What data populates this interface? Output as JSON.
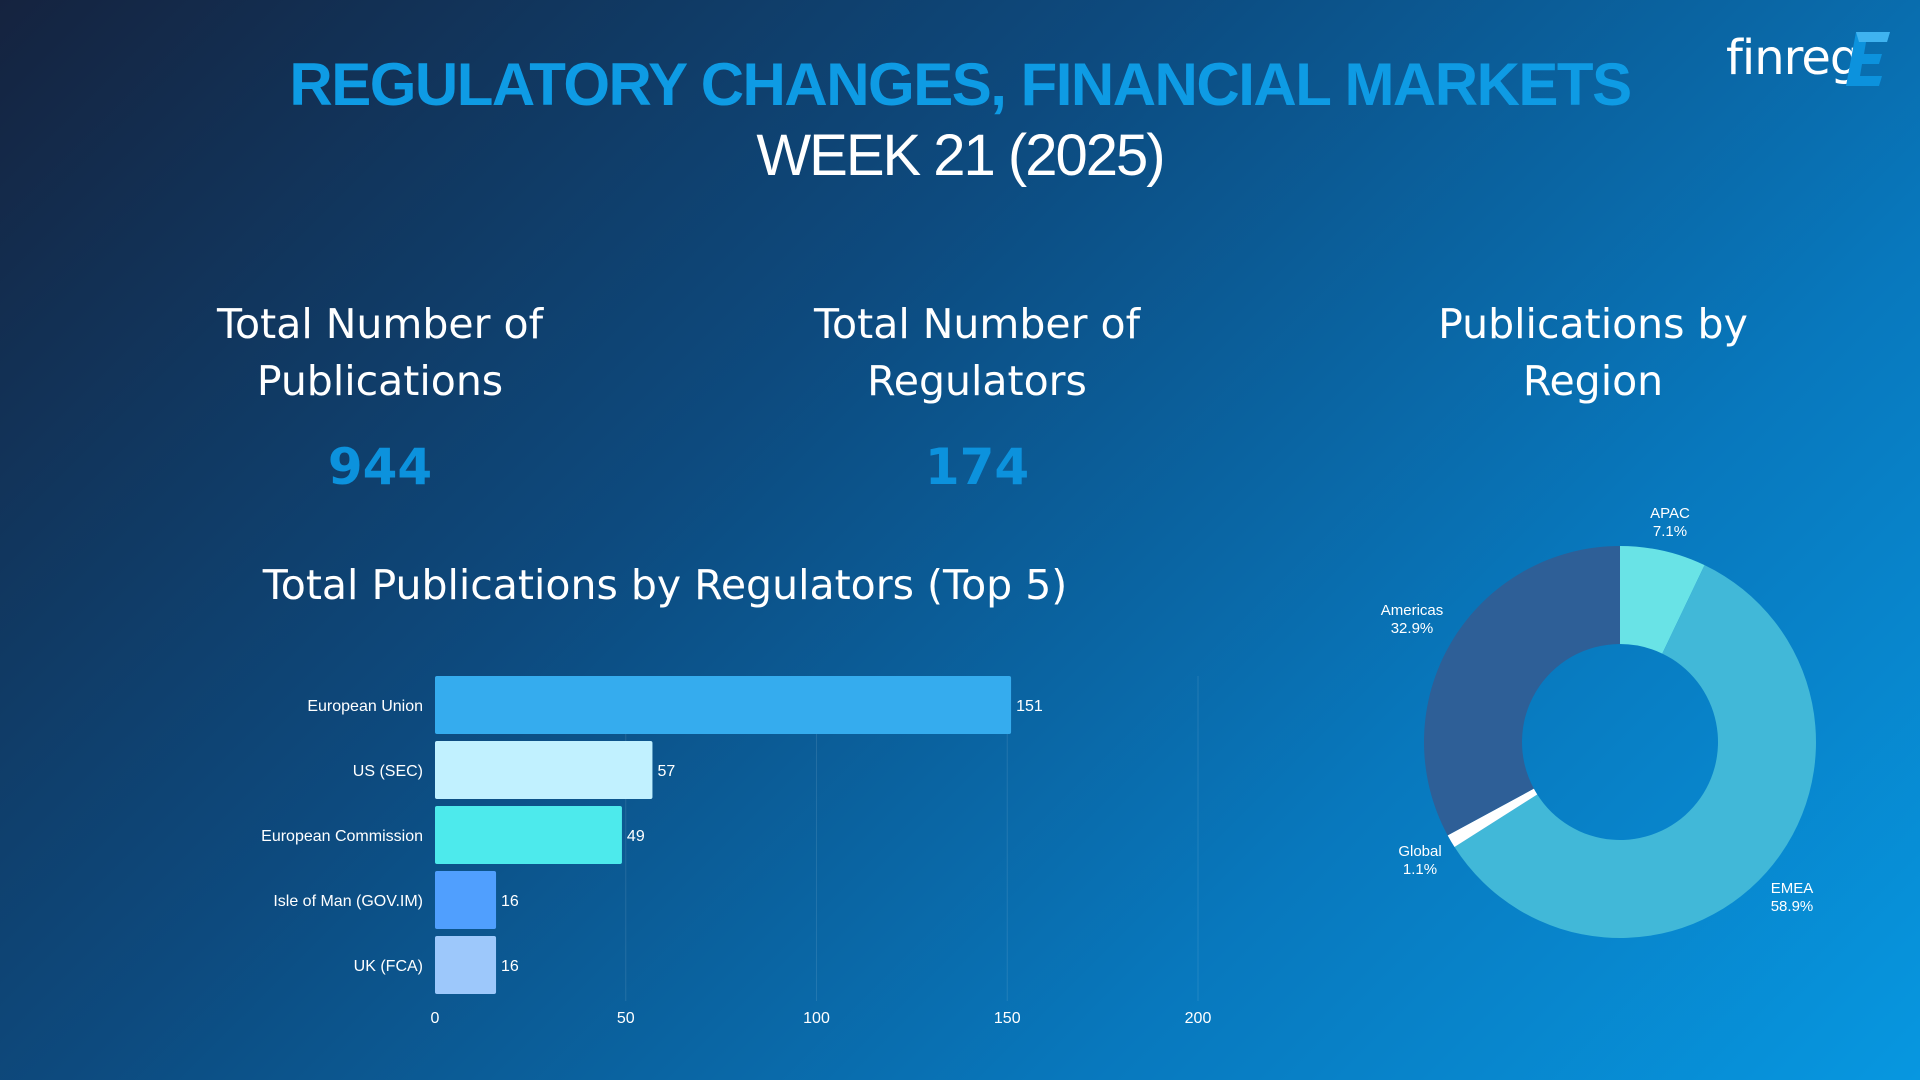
{
  "header": {
    "title": "REGULATORY CHANGES, FINANCIAL MARKETS",
    "subtitle": "WEEK 21 (2025)",
    "logo_text": "finreg",
    "logo_mark": "E"
  },
  "kpis": [
    {
      "title": "Total Number of\nPublications",
      "value": "944"
    },
    {
      "title": "Total Number of\nRegulators",
      "value": "174"
    }
  ],
  "colors": {
    "accent": "#0c92dd",
    "bar_colors": [
      "#35acee",
      "#c1f1ff",
      "#4deaec",
      "#509ffe",
      "#9dc8fb"
    ],
    "pie_colors": {
      "APAC": "#69e3e6",
      "EMEA": "#41b8d8",
      "Global": "#ffffff",
      "Americas": "#2e5f97"
    }
  },
  "chart_data": [
    {
      "type": "bar",
      "orientation": "horizontal",
      "title": "Total Publications by Regulators (Top 5)",
      "categories": [
        "European Union",
        "US (SEC)",
        "European Commission",
        "Isle of Man (GOV.IM)",
        "UK (FCA)"
      ],
      "values": [
        151,
        57,
        49,
        16,
        16
      ],
      "xlim": [
        0,
        200
      ],
      "xticks": [
        0,
        50,
        100,
        150,
        200
      ],
      "grid": true,
      "data_labels": true
    },
    {
      "type": "pie",
      "donut": true,
      "title": "Publications by\nRegion",
      "slices": [
        {
          "label": "APAC",
          "value": 7.1,
          "display": "7.1%"
        },
        {
          "label": "EMEA",
          "value": 58.9,
          "display": "58.9%"
        },
        {
          "label": "Global",
          "value": 1.1,
          "display": "1.1%"
        },
        {
          "label": "Americas",
          "value": 32.9,
          "display": "32.9%"
        }
      ]
    }
  ]
}
